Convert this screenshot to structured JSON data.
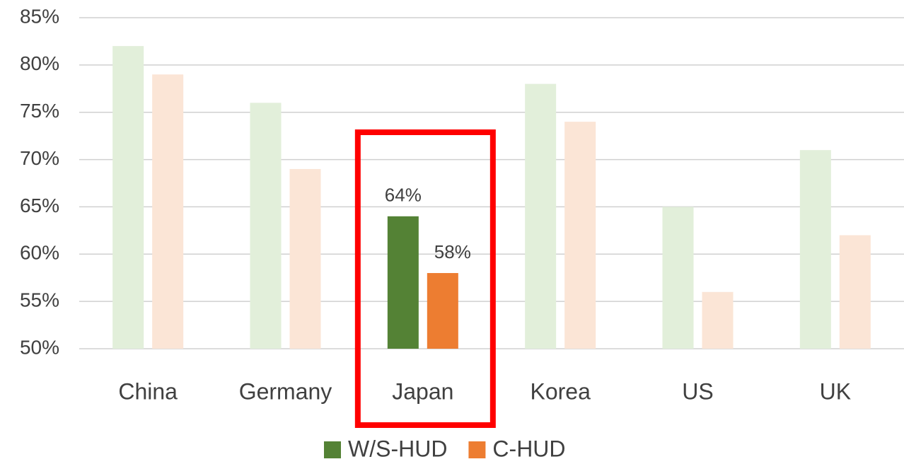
{
  "chart_data": {
    "type": "bar",
    "categories": [
      "China",
      "Germany",
      "Japan",
      "Korea",
      "US",
      "UK"
    ],
    "series": [
      {
        "name": "W/S-HUD",
        "color": "#548235",
        "faded_color": "#e2efda",
        "values": [
          82,
          76,
          64,
          78,
          65,
          71
        ],
        "value_labels": [
          null,
          null,
          "64%",
          null,
          null,
          null
        ]
      },
      {
        "name": "C-HUD",
        "color": "#ed7d31",
        "faded_color": "#fbe5d6",
        "values": [
          79,
          69,
          58,
          74,
          56,
          62
        ],
        "value_labels": [
          null,
          null,
          "58%",
          null,
          null,
          null
        ]
      }
    ],
    "highlight": "Japan",
    "ylim": [
      50,
      85
    ],
    "yticks": [
      {
        "value": 50,
        "label": "50%"
      },
      {
        "value": 55,
        "label": "55%"
      },
      {
        "value": 60,
        "label": "60%"
      },
      {
        "value": 65,
        "label": "65%"
      },
      {
        "value": 70,
        "label": "70%"
      },
      {
        "value": 75,
        "label": "75%"
      },
      {
        "value": 80,
        "label": "80%"
      },
      {
        "value": 85,
        "label": "85%"
      }
    ],
    "grid": true,
    "legend": "bottom"
  }
}
